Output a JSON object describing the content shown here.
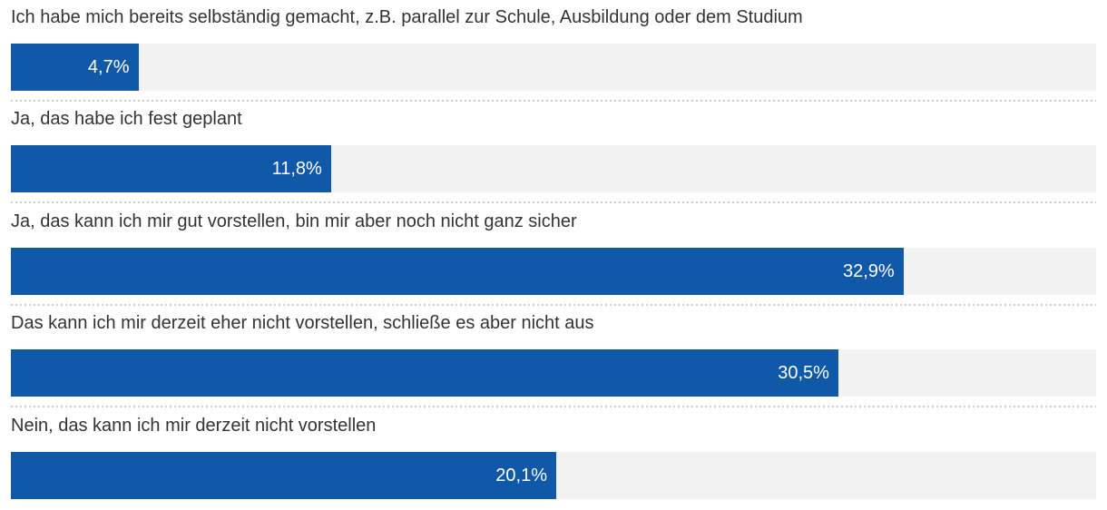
{
  "chart_data": {
    "type": "bar",
    "orientation": "horizontal",
    "categories": [
      "Ich habe mich bereits selbständig gemacht, z.B. parallel zur Schule, Ausbildung oder dem Studium",
      "Ja, das habe ich fest geplant",
      "Ja, das kann ich mir gut vorstellen, bin mir aber noch nicht ganz sicher",
      "Das kann ich mir derzeit eher nicht vorstellen, schließe es aber nicht aus",
      "Nein, das kann ich mir derzeit nicht vorstellen"
    ],
    "values": [
      4.7,
      11.8,
      32.9,
      30.5,
      20.1
    ],
    "value_labels": [
      "4,7%",
      "11,8%",
      "32,9%",
      "30,5%",
      "20,1%"
    ],
    "xlim": [
      0,
      40
    ],
    "unit": "%",
    "decimal_separator": ",",
    "title": "",
    "xlabel": "",
    "ylabel": "",
    "grid": false,
    "legend": false,
    "colors": {
      "bar": "#1058a8",
      "track": "#f2f2f2",
      "category_label": "#333333",
      "value_label": "#ffffff",
      "separator": "#cbcbcb"
    }
  }
}
